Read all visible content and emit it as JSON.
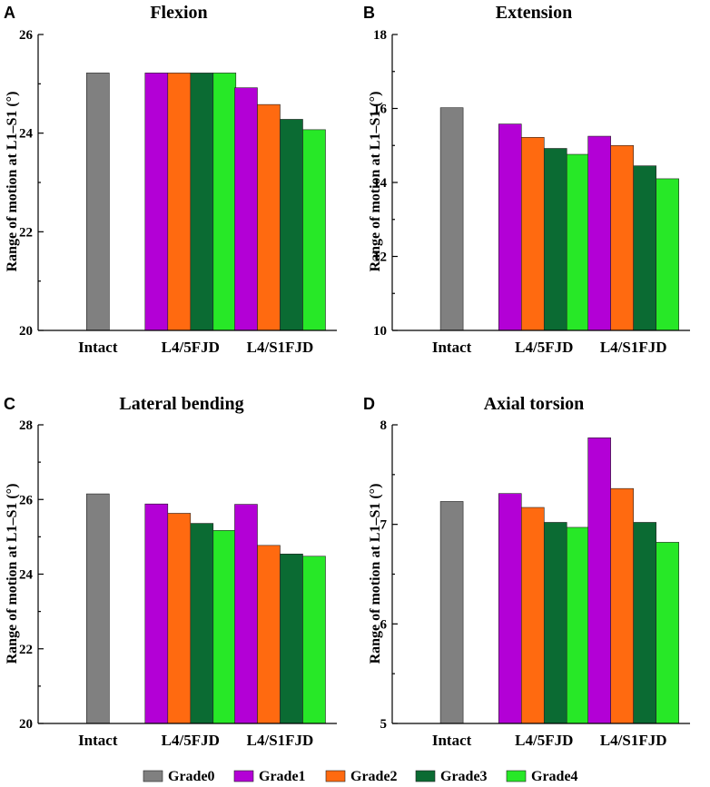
{
  "legend": [
    {
      "name": "Grade0",
      "color": "#808080"
    },
    {
      "name": "Grade1",
      "color": "#B300D6"
    },
    {
      "name": "Grade2",
      "color": "#FF6A10"
    },
    {
      "name": "Grade3",
      "color": "#0B6B33"
    },
    {
      "name": "Grade4",
      "color": "#27E827"
    }
  ],
  "chart_data": [
    {
      "letter": "A",
      "type": "bar",
      "title": "Flexion",
      "ylabel": "Range of motion at L1–S1 (°)",
      "ylim": [
        20,
        26
      ],
      "yticks": [
        "20",
        "22",
        "24",
        "26"
      ],
      "categories": [
        "Intact",
        "L4/5FJD",
        "L4/S1FJD"
      ],
      "series": [
        {
          "name": "Grade0",
          "values": [
            25.22,
            null,
            null
          ]
        },
        {
          "name": "Grade1",
          "values": [
            null,
            25.22,
            24.92
          ]
        },
        {
          "name": "Grade2",
          "values": [
            null,
            25.22,
            24.58
          ]
        },
        {
          "name": "Grade3",
          "values": [
            null,
            25.22,
            24.28
          ]
        },
        {
          "name": "Grade4",
          "values": [
            null,
            25.22,
            24.07
          ]
        }
      ]
    },
    {
      "letter": "B",
      "type": "bar",
      "title": "Extension",
      "ylabel": "Range of motion at L1–S1 (°)",
      "ylim": [
        10,
        18
      ],
      "yticks": [
        "10",
        "12",
        "14",
        "16",
        "18"
      ],
      "categories": [
        "Intact",
        "L4/5FJD",
        "L4/S1FJD"
      ],
      "series": [
        {
          "name": "Grade0",
          "values": [
            16.02,
            null,
            null
          ]
        },
        {
          "name": "Grade1",
          "values": [
            null,
            15.58,
            15.25
          ]
        },
        {
          "name": "Grade2",
          "values": [
            null,
            15.22,
            15.0
          ]
        },
        {
          "name": "Grade3",
          "values": [
            null,
            14.92,
            14.45
          ]
        },
        {
          "name": "Grade4",
          "values": [
            null,
            14.76,
            14.1
          ]
        }
      ]
    },
    {
      "letter": "C",
      "type": "bar",
      "title": "Lateral bending",
      "ylabel": "Range of motion at L1–S1 (°)",
      "ylim": [
        20,
        28
      ],
      "yticks": [
        "20",
        "22",
        "24",
        "26",
        "28"
      ],
      "categories": [
        "Intact",
        "L4/5FJD",
        "L4/S1FJD"
      ],
      "series": [
        {
          "name": "Grade0",
          "values": [
            26.15,
            null,
            null
          ]
        },
        {
          "name": "Grade1",
          "values": [
            null,
            25.88,
            25.87
          ]
        },
        {
          "name": "Grade2",
          "values": [
            null,
            25.63,
            24.77
          ]
        },
        {
          "name": "Grade3",
          "values": [
            null,
            25.36,
            24.54
          ]
        },
        {
          "name": "Grade4",
          "values": [
            null,
            25.17,
            24.48
          ]
        }
      ]
    },
    {
      "letter": "D",
      "type": "bar",
      "title": "Axial torsion",
      "ylabel": "Range of motion at L1–S1 (°)",
      "ylim": [
        5,
        8
      ],
      "yticks": [
        "5",
        "6",
        "7",
        "8"
      ],
      "categories": [
        "Intact",
        "L4/5FJD",
        "L4/S1FJD"
      ],
      "series": [
        {
          "name": "Grade0",
          "values": [
            7.23,
            null,
            null
          ]
        },
        {
          "name": "Grade1",
          "values": [
            null,
            7.31,
            7.87
          ]
        },
        {
          "name": "Grade2",
          "values": [
            null,
            7.17,
            7.36
          ]
        },
        {
          "name": "Grade3",
          "values": [
            null,
            7.02,
            7.02
          ]
        },
        {
          "name": "Grade4",
          "values": [
            null,
            6.97,
            6.82
          ]
        }
      ]
    }
  ]
}
